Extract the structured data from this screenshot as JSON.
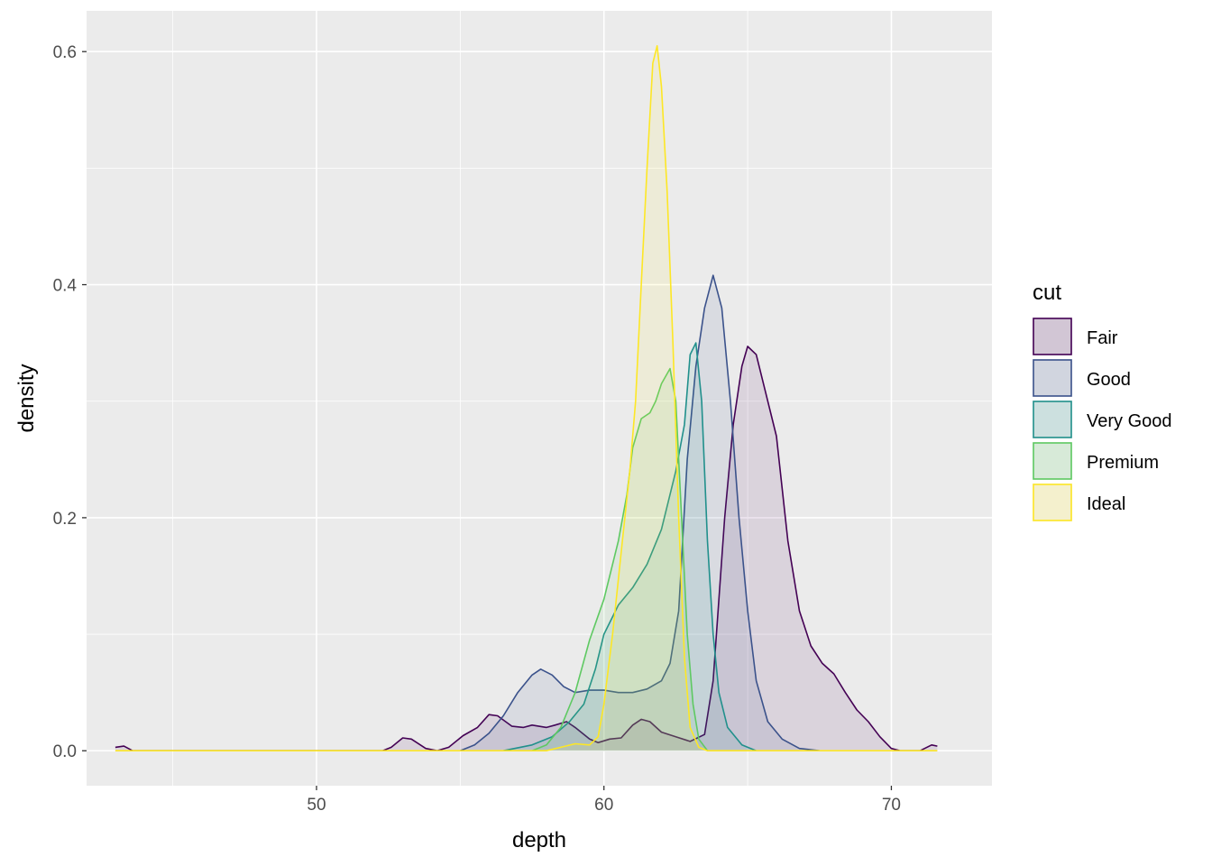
{
  "chart_data": {
    "type": "area",
    "subtype": "density",
    "title": "",
    "xlabel": "depth",
    "ylabel": "density",
    "xlim": [
      42,
      73.5
    ],
    "ylim": [
      -0.03,
      0.635
    ],
    "x_ticks": [
      50,
      60,
      70
    ],
    "x_tick_labels": [
      "50",
      "60",
      "70"
    ],
    "y_ticks": [
      0.0,
      0.2,
      0.4,
      0.6
    ],
    "y_tick_labels": [
      "0.0",
      "0.2",
      "0.4",
      "0.6"
    ],
    "grid": true,
    "legend": {
      "title": "cut",
      "position": "right"
    },
    "fill_opacity": 0.1,
    "series": [
      {
        "name": "Fair",
        "color": "#440154",
        "points": [
          [
            43.0,
            0.003
          ],
          [
            43.3,
            0.004
          ],
          [
            43.6,
            0.0
          ],
          [
            52.3,
            0.0
          ],
          [
            52.6,
            0.003
          ],
          [
            53.0,
            0.011
          ],
          [
            53.3,
            0.01
          ],
          [
            53.8,
            0.002
          ],
          [
            54.2,
            0.0
          ],
          [
            54.6,
            0.003
          ],
          [
            55.1,
            0.013
          ],
          [
            55.6,
            0.02
          ],
          [
            56.0,
            0.031
          ],
          [
            56.3,
            0.03
          ],
          [
            56.8,
            0.021
          ],
          [
            57.2,
            0.02
          ],
          [
            57.5,
            0.022
          ],
          [
            58.0,
            0.02
          ],
          [
            58.3,
            0.022
          ],
          [
            58.7,
            0.025
          ],
          [
            59.0,
            0.02
          ],
          [
            59.5,
            0.01
          ],
          [
            59.8,
            0.007
          ],
          [
            60.2,
            0.01
          ],
          [
            60.6,
            0.011
          ],
          [
            61.0,
            0.022
          ],
          [
            61.3,
            0.027
          ],
          [
            61.6,
            0.025
          ],
          [
            62.0,
            0.016
          ],
          [
            62.5,
            0.012
          ],
          [
            63.0,
            0.008
          ],
          [
            63.5,
            0.014
          ],
          [
            63.8,
            0.06
          ],
          [
            64.0,
            0.13
          ],
          [
            64.2,
            0.2
          ],
          [
            64.5,
            0.28
          ],
          [
            64.8,
            0.33
          ],
          [
            65.0,
            0.347
          ],
          [
            65.3,
            0.34
          ],
          [
            65.6,
            0.31
          ],
          [
            66.0,
            0.27
          ],
          [
            66.4,
            0.18
          ],
          [
            66.8,
            0.12
          ],
          [
            67.2,
            0.09
          ],
          [
            67.6,
            0.075
          ],
          [
            68.0,
            0.066
          ],
          [
            68.4,
            0.05
          ],
          [
            68.8,
            0.035
          ],
          [
            69.2,
            0.025
          ],
          [
            69.6,
            0.012
          ],
          [
            70.0,
            0.002
          ],
          [
            70.3,
            0.0
          ],
          [
            71.0,
            0.0
          ],
          [
            71.4,
            0.005
          ],
          [
            71.6,
            0.004
          ]
        ]
      },
      {
        "name": "Good",
        "color": "#3b528b",
        "points": [
          [
            55.0,
            0.0
          ],
          [
            55.5,
            0.005
          ],
          [
            56.0,
            0.015
          ],
          [
            56.5,
            0.03
          ],
          [
            57.0,
            0.05
          ],
          [
            57.5,
            0.065
          ],
          [
            57.8,
            0.07
          ],
          [
            58.2,
            0.065
          ],
          [
            58.6,
            0.055
          ],
          [
            59.0,
            0.05
          ],
          [
            59.5,
            0.052
          ],
          [
            60.0,
            0.052
          ],
          [
            60.5,
            0.05
          ],
          [
            61.0,
            0.05
          ],
          [
            61.5,
            0.053
          ],
          [
            62.0,
            0.06
          ],
          [
            62.3,
            0.075
          ],
          [
            62.6,
            0.12
          ],
          [
            62.9,
            0.25
          ],
          [
            63.2,
            0.33
          ],
          [
            63.5,
            0.38
          ],
          [
            63.8,
            0.408
          ],
          [
            64.1,
            0.38
          ],
          [
            64.4,
            0.3
          ],
          [
            64.7,
            0.2
          ],
          [
            65.0,
            0.12
          ],
          [
            65.3,
            0.06
          ],
          [
            65.7,
            0.025
          ],
          [
            66.2,
            0.01
          ],
          [
            66.8,
            0.002
          ],
          [
            67.5,
            0.0
          ]
        ]
      },
      {
        "name": "Very Good",
        "color": "#21908c",
        "points": [
          [
            56.5,
            0.0
          ],
          [
            57.5,
            0.005
          ],
          [
            58.2,
            0.012
          ],
          [
            58.8,
            0.025
          ],
          [
            59.3,
            0.04
          ],
          [
            59.7,
            0.07
          ],
          [
            60.0,
            0.1
          ],
          [
            60.5,
            0.125
          ],
          [
            61.0,
            0.14
          ],
          [
            61.5,
            0.16
          ],
          [
            62.0,
            0.19
          ],
          [
            62.5,
            0.24
          ],
          [
            62.8,
            0.28
          ],
          [
            63.0,
            0.34
          ],
          [
            63.2,
            0.35
          ],
          [
            63.4,
            0.3
          ],
          [
            63.6,
            0.18
          ],
          [
            63.8,
            0.1
          ],
          [
            64.0,
            0.05
          ],
          [
            64.3,
            0.02
          ],
          [
            64.8,
            0.005
          ],
          [
            65.3,
            0.0
          ]
        ]
      },
      {
        "name": "Premium",
        "color": "#5ec962",
        "points": [
          [
            57.5,
            0.0
          ],
          [
            58.0,
            0.005
          ],
          [
            58.5,
            0.02
          ],
          [
            59.0,
            0.05
          ],
          [
            59.5,
            0.095
          ],
          [
            60.0,
            0.13
          ],
          [
            60.5,
            0.18
          ],
          [
            60.8,
            0.22
          ],
          [
            61.0,
            0.26
          ],
          [
            61.3,
            0.285
          ],
          [
            61.6,
            0.29
          ],
          [
            61.8,
            0.3
          ],
          [
            62.0,
            0.315
          ],
          [
            62.3,
            0.328
          ],
          [
            62.5,
            0.3
          ],
          [
            62.7,
            0.2
          ],
          [
            62.9,
            0.1
          ],
          [
            63.1,
            0.04
          ],
          [
            63.3,
            0.01
          ],
          [
            63.6,
            0.0
          ]
        ]
      },
      {
        "name": "Ideal",
        "color": "#fde725",
        "points": [
          [
            43.0,
            0.0
          ],
          [
            52.3,
            0.0
          ],
          [
            58.0,
            0.0
          ],
          [
            58.5,
            0.003
          ],
          [
            59.0,
            0.006
          ],
          [
            59.5,
            0.005
          ],
          [
            59.8,
            0.012
          ],
          [
            60.0,
            0.04
          ],
          [
            60.3,
            0.1
          ],
          [
            60.6,
            0.17
          ],
          [
            60.9,
            0.24
          ],
          [
            61.1,
            0.3
          ],
          [
            61.3,
            0.4
          ],
          [
            61.5,
            0.5
          ],
          [
            61.7,
            0.59
          ],
          [
            61.85,
            0.605
          ],
          [
            62.0,
            0.57
          ],
          [
            62.2,
            0.48
          ],
          [
            62.4,
            0.35
          ],
          [
            62.6,
            0.2
          ],
          [
            62.8,
            0.08
          ],
          [
            63.0,
            0.02
          ],
          [
            63.3,
            0.003
          ],
          [
            63.6,
            0.0
          ],
          [
            71.6,
            0.0
          ]
        ]
      }
    ]
  }
}
